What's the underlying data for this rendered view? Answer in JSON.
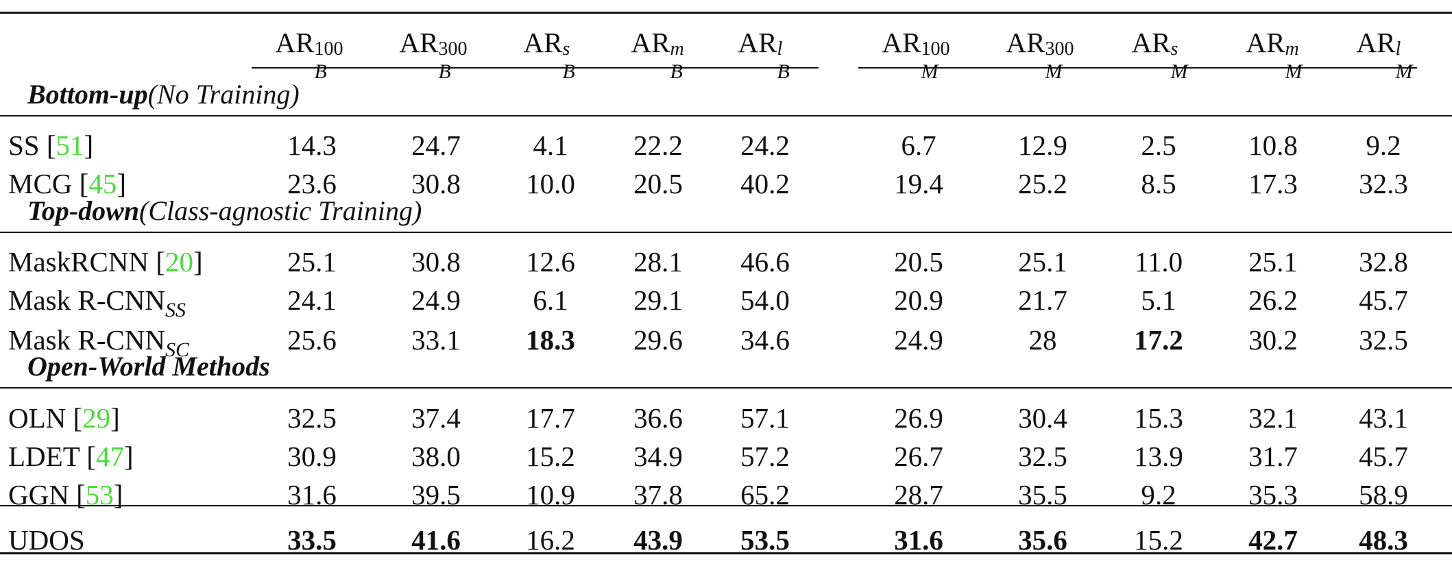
{
  "headers": {
    "box": [
      {
        "base": "AR",
        "sup": "100",
        "sub": "B"
      },
      {
        "base": "AR",
        "sup": "300",
        "sub": "B"
      },
      {
        "base": "AR",
        "sup": "s",
        "sub": "B"
      },
      {
        "base": "AR",
        "sup": "m",
        "sub": "B"
      },
      {
        "base": "AR",
        "sup": "l",
        "sub": "B"
      }
    ],
    "mask": [
      {
        "base": "AR",
        "sup": "100",
        "sub": "M"
      },
      {
        "base": "AR",
        "sup": "300",
        "sub": "M"
      },
      {
        "base": "AR",
        "sup": "s",
        "sub": "M"
      },
      {
        "base": "AR",
        "sup": "m",
        "sub": "M"
      },
      {
        "base": "AR",
        "sup": "l",
        "sub": "M"
      }
    ]
  },
  "sections": [
    {
      "bold": "Bottom-up",
      "rest": "(No Training)"
    },
    {
      "bold": "Top-down",
      "rest": "(Class-agnostic Training)"
    },
    {
      "bold": "Open-World Methods",
      "rest": ""
    }
  ],
  "rows": [
    {
      "name": "SS [",
      "cite": "51",
      "close": "]",
      "sub": "",
      "values": [
        "14.3",
        "24.7",
        "4.1",
        "22.2",
        "24.2",
        "6.7",
        "12.9",
        "2.5",
        "10.8",
        "9.2"
      ],
      "bold": []
    },
    {
      "name": "MCG [",
      "cite": "45",
      "close": "]",
      "sub": "",
      "values": [
        "23.6",
        "30.8",
        "10.0",
        "20.5",
        "40.2",
        "19.4",
        "25.2",
        "8.5",
        "17.3",
        "32.3"
      ],
      "bold": []
    },
    {
      "name": "MaskRCNN [",
      "cite": "20",
      "close": "]",
      "sub": "",
      "values": [
        "25.1",
        "30.8",
        "12.6",
        "28.1",
        "46.6",
        "20.5",
        "25.1",
        "11.0",
        "25.1",
        "32.8"
      ],
      "bold": []
    },
    {
      "name": "Mask R-CNN",
      "cite": "",
      "close": "",
      "sub": "SS",
      "values": [
        "24.1",
        "24.9",
        "6.1",
        "29.1",
        "54.0",
        "20.9",
        "21.7",
        "5.1",
        "26.2",
        "45.7"
      ],
      "bold": []
    },
    {
      "name": "Mask R-CNN",
      "cite": "",
      "close": "",
      "sub": "SC",
      "values": [
        "25.6",
        "33.1",
        "18.3",
        "29.6",
        "34.6",
        "24.9",
        "28",
        "17.2",
        "30.2",
        "32.5"
      ],
      "bold": [
        2,
        7
      ]
    },
    {
      "name": "OLN [",
      "cite": "29",
      "close": "]",
      "sub": "",
      "values": [
        "32.5",
        "37.4",
        "17.7",
        "36.6",
        "57.1",
        "26.9",
        "30.4",
        "15.3",
        "32.1",
        "43.1"
      ],
      "bold": []
    },
    {
      "name": "LDET [",
      "cite": "47",
      "close": "]",
      "sub": "",
      "values": [
        "30.9",
        "38.0",
        "15.2",
        "34.9",
        "57.2",
        "26.7",
        "32.5",
        "13.9",
        "31.7",
        "45.7"
      ],
      "bold": []
    },
    {
      "name": "GGN [",
      "cite": "53",
      "close": "]",
      "sub": "",
      "values": [
        "31.6",
        "39.5",
        "10.9",
        "37.8",
        "65.2",
        "28.7",
        "35.5",
        "9.2",
        "35.3",
        "58.9"
      ],
      "bold": []
    },
    {
      "name": "UDOS",
      "cite": "",
      "close": "",
      "sub": "",
      "values": [
        "33.5",
        "41.6",
        "16.2",
        "43.9",
        "53.5",
        "31.6",
        "35.6",
        "15.2",
        "42.7",
        "48.3"
      ],
      "bold": [
        0,
        1,
        3,
        4,
        5,
        6,
        8,
        9
      ]
    }
  ],
  "colors": {
    "cite": "#4cdb3a",
    "text": "#111111"
  }
}
